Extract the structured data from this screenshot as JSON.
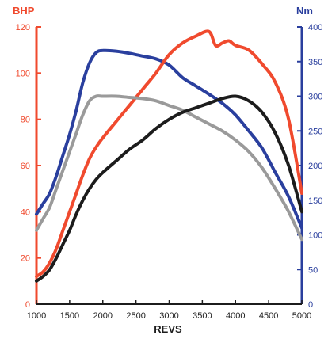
{
  "chart_data": {
    "type": "line",
    "xlabel": "REVS",
    "x_ticks": [
      "1000",
      "1500",
      "2000",
      "2500",
      "3000",
      "3500",
      "4000",
      "4500",
      "5000"
    ],
    "xlim": [
      1000,
      5000
    ],
    "left_axis": {
      "label": "BHP",
      "ylim": [
        0,
        120
      ],
      "ticks": [
        "0",
        "20",
        "40",
        "60",
        "80",
        "100",
        "120"
      ],
      "color": "#f04a2e"
    },
    "right_axis": {
      "label": "Nm",
      "ylim": [
        0,
        400
      ],
      "ticks": [
        "0",
        "50",
        "100",
        "150",
        "200",
        "250",
        "300",
        "350",
        "400"
      ],
      "color": "#2a3f9e"
    },
    "grid": false,
    "series": [
      {
        "axis": "right",
        "color": "#2a3f9e",
        "x": [
          1000,
          1100,
          1200,
          1300,
          1400,
          1500,
          1600,
          1700,
          1800,
          1900,
          2000,
          2200,
          2400,
          2600,
          2800,
          3000,
          3200,
          3400,
          3600,
          3800,
          4000,
          4200,
          4400,
          4600,
          4800,
          5000
        ],
        "y": [
          130,
          145,
          160,
          185,
          215,
          245,
          280,
          320,
          348,
          363,
          366,
          365,
          362,
          358,
          354,
          345,
          327,
          315,
          303,
          290,
          273,
          250,
          225,
          190,
          155,
          110
        ]
      },
      {
        "axis": "left",
        "color": "#f04a2e",
        "x": [
          1000,
          1100,
          1200,
          1300,
          1400,
          1500,
          1600,
          1700,
          1800,
          1900,
          2000,
          2200,
          2400,
          2600,
          2800,
          3000,
          3200,
          3400,
          3600,
          3700,
          3800,
          3900,
          4000,
          4200,
          4400,
          4600,
          4800,
          5000
        ],
        "y": [
          12,
          14,
          18,
          24,
          32,
          40,
          48,
          56,
          63,
          68,
          72,
          79,
          86,
          93,
          100,
          108,
          113,
          116,
          118,
          112,
          113,
          114,
          112,
          110,
          104,
          96,
          80,
          48
        ]
      },
      {
        "axis": "left",
        "color": "#9a9a9a",
        "x": [
          1000,
          1100,
          1200,
          1300,
          1400,
          1500,
          1600,
          1700,
          1800,
          1900,
          2000,
          2200,
          2400,
          2600,
          2800,
          3000,
          3200,
          3400,
          3600,
          3800,
          4000,
          4200,
          4400,
          4600,
          4800,
          5000
        ],
        "y": [
          32,
          37,
          42,
          50,
          58,
          66,
          74,
          82,
          88,
          90,
          90,
          90,
          89.5,
          89,
          88,
          86,
          84,
          81,
          78,
          75,
          71,
          66,
          59,
          50,
          40,
          28
        ]
      },
      {
        "axis": "left",
        "color": "#1c1c1c",
        "x": [
          1000,
          1100,
          1200,
          1300,
          1400,
          1500,
          1600,
          1700,
          1800,
          1900,
          2000,
          2200,
          2400,
          2600,
          2800,
          3000,
          3200,
          3400,
          3600,
          3800,
          4000,
          4200,
          4400,
          4600,
          4800,
          5000
        ],
        "y": [
          10,
          12,
          15,
          20,
          26,
          32,
          39,
          45,
          50,
          54,
          57,
          62,
          67,
          71,
          76,
          80,
          83,
          85,
          87,
          89,
          90,
          88,
          83,
          74,
          60,
          40
        ]
      }
    ]
  }
}
